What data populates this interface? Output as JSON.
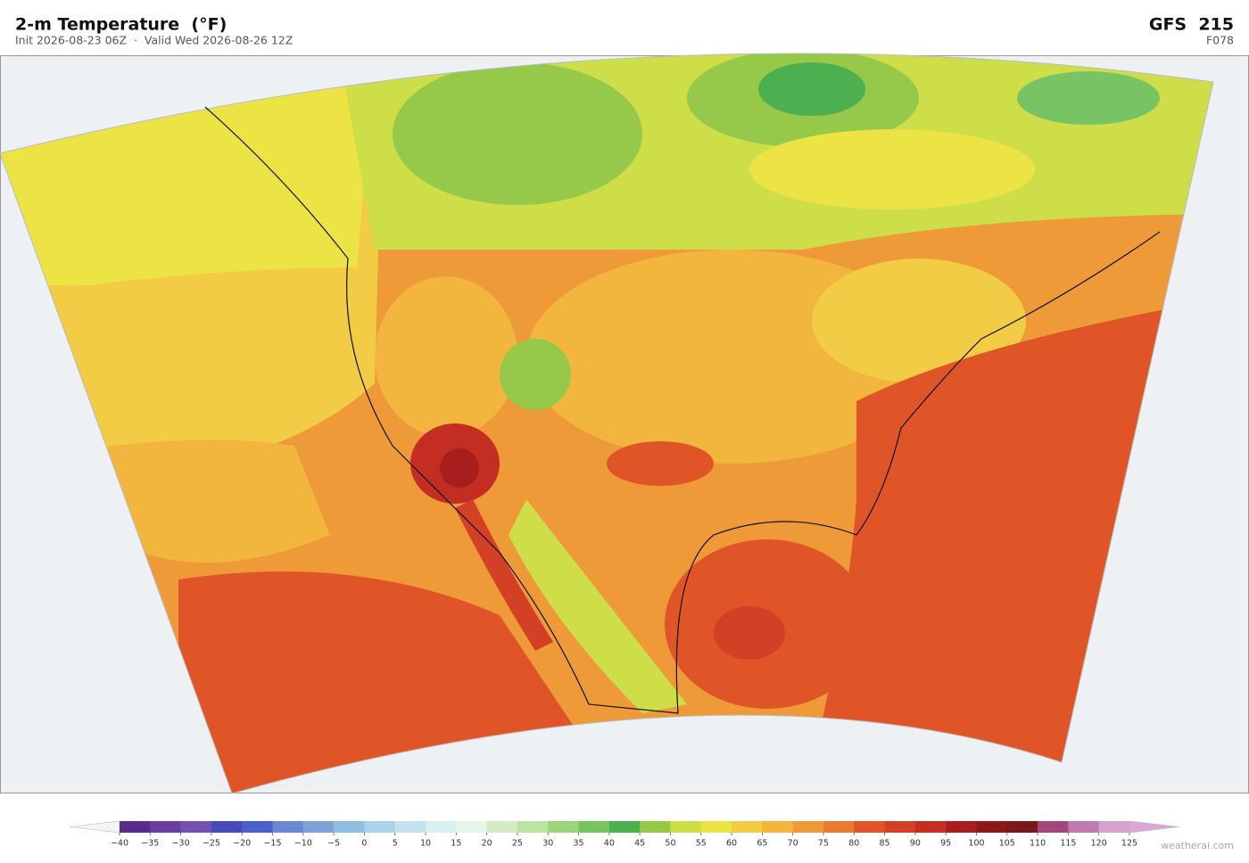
{
  "header": {
    "title": "2-m Temperature  (°F)",
    "subtitle": "Init 2026-08-23 06Z  ·  Valid Wed 2026-08-26 12Z",
    "model": "GFS  215",
    "forecast_hour": "F078"
  },
  "colorbar": {
    "ticks": [
      {
        "value": -40,
        "label": "−40"
      },
      {
        "value": -35,
        "label": "−35"
      },
      {
        "value": -30,
        "label": "−30"
      },
      {
        "value": -25,
        "label": "−25"
      },
      {
        "value": -20,
        "label": "−20"
      },
      {
        "value": -15,
        "label": "−15"
      },
      {
        "value": -10,
        "label": "−10"
      },
      {
        "value": -5,
        "label": "−5"
      },
      0,
      5,
      10,
      15,
      20,
      25,
      30,
      35,
      40,
      45,
      50,
      55,
      60,
      65,
      70,
      75,
      80,
      85,
      90,
      95,
      100,
      105,
      110,
      115,
      120,
      125
    ],
    "colors": [
      "#5a2a8c",
      "#6b3fa0",
      "#7452b2",
      "#4a4ab8",
      "#4a62c8",
      "#6a88d0",
      "#7ea2d8",
      "#92bde2",
      "#aad2ea",
      "#c2e2ef",
      "#d8eff2",
      "#e8f5ea",
      "#d4ecc4",
      "#bce4a0",
      "#9cd47c",
      "#78c464",
      "#4caf50",
      "#96c84a",
      "#cede48",
      "#ece444",
      "#f2cc44",
      "#f2b63e",
      "#ee9a38",
      "#ea7c30",
      "#e05528",
      "#d44026",
      "#c42e22",
      "#a81e1e",
      "#8c1818",
      "#7a1820",
      "#a0487a",
      "#c07ab0",
      "#d8a2cc"
    ],
    "under_color": "#f4f4f4",
    "over_color": "#d9a8d4"
  },
  "watermark": "weatherai.com"
}
